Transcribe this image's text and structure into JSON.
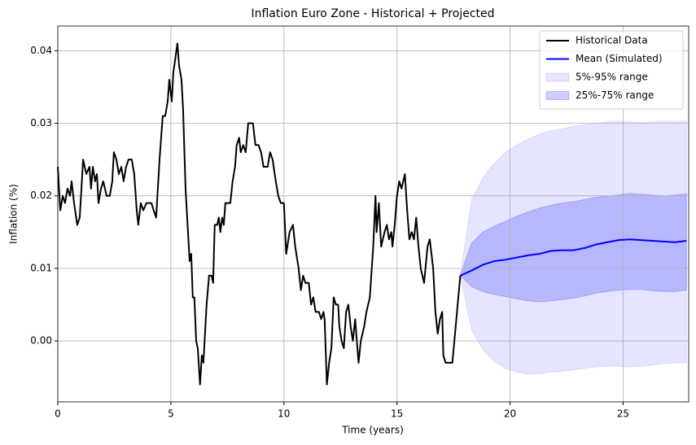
{
  "chart_data": {
    "type": "line",
    "title": "Inflation Euro Zone - Historical + Projected",
    "x_label": "Time (years)",
    "y_label": "Inflation (%)",
    "xlim": [
      0,
      27.9
    ],
    "ylim": [
      -0.0084,
      0.0434
    ],
    "xticks": [
      0,
      5,
      10,
      15,
      20,
      25
    ],
    "yticks": [
      {
        "value": 0,
        "label": "0.00"
      },
      0.01,
      0.02,
      0.03,
      0.04
    ],
    "grid": true,
    "legend_position": "upper-right",
    "series": [
      {
        "name": "Historical Data",
        "color": "#000000",
        "x": [
          0,
          0.11,
          0.22,
          0.32,
          0.43,
          0.54,
          0.61,
          0.72,
          0.86,
          0.97,
          1.12,
          1.26,
          1.4,
          1.47,
          1.55,
          1.65,
          1.73,
          1.8,
          1.91,
          2.01,
          2.16,
          2.3,
          2.41,
          2.48,
          2.59,
          2.7,
          2.81,
          2.91,
          3.02,
          3.13,
          3.27,
          3.38,
          3.49,
          3.56,
          3.67,
          3.78,
          3.92,
          4.14,
          4.24,
          4.35,
          4.5,
          4.64,
          4.75,
          4.86,
          4.93,
          5.04,
          5.11,
          5.29,
          5.36,
          5.47,
          5.54,
          5.65,
          5.83,
          5.9,
          5.97,
          6.04,
          6.12,
          6.19,
          6.29,
          6.37,
          6.44,
          6.58,
          6.69,
          6.8,
          6.87,
          6.94,
          7.05,
          7.12,
          7.19,
          7.27,
          7.34,
          7.41,
          7.63,
          7.73,
          7.84,
          7.91,
          8.02,
          8.09,
          8.2,
          8.31,
          8.42,
          8.63,
          8.74,
          8.88,
          8.99,
          9.1,
          9.28,
          9.39,
          9.5,
          9.64,
          9.75,
          9.86,
          10.0,
          10.1,
          10.25,
          10.4,
          10.5,
          10.65,
          10.75,
          10.85,
          10.95,
          11.1,
          11.2,
          11.3,
          11.4,
          11.55,
          11.65,
          11.75,
          11.8,
          11.9,
          12.0,
          12.1,
          12.2,
          12.3,
          12.4,
          12.45,
          12.55,
          12.65,
          12.75,
          12.85,
          12.95,
          13.05,
          13.15,
          13.2,
          13.3,
          13.4,
          13.55,
          13.65,
          13.8,
          13.95,
          14.05,
          14.1,
          14.2,
          14.3,
          14.45,
          14.55,
          14.65,
          14.75,
          14.8,
          14.9,
          15.0,
          15.1,
          15.2,
          15.35,
          15.45,
          15.55,
          15.65,
          15.75,
          15.85,
          15.95,
          16.05,
          16.2,
          16.35,
          16.45,
          16.6,
          16.7,
          16.8,
          16.9,
          17.0,
          17.05,
          17.15,
          17.45,
          17.8
        ],
        "values": [
          0.024,
          0.018,
          0.02,
          0.019,
          0.021,
          0.02,
          0.022,
          0.019,
          0.016,
          0.017,
          0.025,
          0.023,
          0.024,
          0.021,
          0.024,
          0.022,
          0.023,
          0.019,
          0.021,
          0.022,
          0.02,
          0.02,
          0.022,
          0.026,
          0.025,
          0.023,
          0.024,
          0.022,
          0.024,
          0.025,
          0.025,
          0.023,
          0.018,
          0.016,
          0.019,
          0.018,
          0.019,
          0.019,
          0.018,
          0.017,
          0.025,
          0.031,
          0.031,
          0.033,
          0.036,
          0.033,
          0.037,
          0.041,
          0.038,
          0.036,
          0.032,
          0.021,
          0.011,
          0.012,
          0.006,
          0.006,
          0.0,
          -0.001,
          -0.006,
          -0.002,
          -0.003,
          0.005,
          0.009,
          0.009,
          0.008,
          0.016,
          0.016,
          0.017,
          0.015,
          0.017,
          0.016,
          0.019,
          0.019,
          0.022,
          0.024,
          0.027,
          0.028,
          0.026,
          0.027,
          0.026,
          0.03,
          0.03,
          0.027,
          0.027,
          0.026,
          0.024,
          0.024,
          0.026,
          0.025,
          0.022,
          0.02,
          0.019,
          0.019,
          0.012,
          0.015,
          0.016,
          0.013,
          0.01,
          0.007,
          0.009,
          0.008,
          0.008,
          0.005,
          0.006,
          0.004,
          0.004,
          0.003,
          0.004,
          0.003,
          -0.006,
          -0.003,
          -0.001,
          0.006,
          0.005,
          0.005,
          0.002,
          0.0,
          -0.001,
          0.004,
          0.005,
          0.002,
          0.0,
          0.003,
          0.001,
          -0.003,
          0.0,
          0.002,
          0.004,
          0.006,
          0.013,
          0.02,
          0.015,
          0.019,
          0.013,
          0.015,
          0.016,
          0.014,
          0.015,
          0.013,
          0.016,
          0.02,
          0.022,
          0.021,
          0.023,
          0.018,
          0.014,
          0.015,
          0.014,
          0.017,
          0.013,
          0.01,
          0.008,
          0.013,
          0.014,
          0.01,
          0.004,
          0.001,
          0.003,
          0.004,
          -0.002,
          -0.003,
          -0.003,
          0.009
        ]
      },
      {
        "name": "Mean (Simulated)",
        "color": "#0000ff",
        "x": [
          17.8,
          18.3,
          18.8,
          19.3,
          19.8,
          20.3,
          20.8,
          21.3,
          21.8,
          22.3,
          22.8,
          23.3,
          23.8,
          24.3,
          24.8,
          25.3,
          25.8,
          26.3,
          26.8,
          27.3,
          27.8
        ],
        "values": [
          0.009,
          0.0097,
          0.0105,
          0.011,
          0.0112,
          0.0115,
          0.0118,
          0.012,
          0.0124,
          0.0125,
          0.0125,
          0.0128,
          0.0133,
          0.0136,
          0.0139,
          0.014,
          0.0139,
          0.0138,
          0.0137,
          0.0136,
          0.0138
        ]
      }
    ],
    "bands": [
      {
        "name": "5%-95% range",
        "color": "#0000ff",
        "opacity": 0.1,
        "x": [
          17.8,
          18.3,
          18.8,
          19.3,
          19.8,
          20.3,
          20.8,
          21.3,
          21.8,
          22.3,
          22.8,
          23.3,
          23.8,
          24.3,
          24.8,
          25.3,
          25.8,
          26.3,
          26.8,
          27.3,
          27.8
        ],
        "lower": [
          0.009,
          0.0015,
          -0.0012,
          -0.0028,
          -0.0038,
          -0.0043,
          -0.0046,
          -0.0045,
          -0.0043,
          -0.0042,
          -0.004,
          -0.0038,
          -0.0036,
          -0.0035,
          -0.0035,
          -0.0036,
          -0.0035,
          -0.0033,
          -0.0031,
          -0.003,
          -0.003
        ],
        "upper": [
          0.009,
          0.0195,
          0.0225,
          0.0245,
          0.026,
          0.027,
          0.0278,
          0.0285,
          0.029,
          0.0292,
          0.0296,
          0.0298,
          0.03,
          0.0302,
          0.0303,
          0.0302,
          0.0301,
          0.0302,
          0.0303,
          0.0302,
          0.0303
        ]
      },
      {
        "name": "25%-75% range",
        "color": "#0000ff",
        "opacity": 0.2,
        "x": [
          17.8,
          18.3,
          18.8,
          19.3,
          19.8,
          20.3,
          20.8,
          21.3,
          21.8,
          22.3,
          22.8,
          23.3,
          23.8,
          24.3,
          24.8,
          25.3,
          25.8,
          26.3,
          26.8,
          27.3,
          27.8
        ],
        "lower": [
          0.009,
          0.0075,
          0.0068,
          0.0064,
          0.0061,
          0.0058,
          0.0055,
          0.0054,
          0.0055,
          0.0057,
          0.0059,
          0.0062,
          0.0066,
          0.0068,
          0.007,
          0.0071,
          0.0071,
          0.0069,
          0.0068,
          0.0068,
          0.007
        ],
        "upper": [
          0.009,
          0.0135,
          0.015,
          0.0158,
          0.0165,
          0.0172,
          0.0178,
          0.0183,
          0.0187,
          0.019,
          0.0192,
          0.0195,
          0.0198,
          0.02,
          0.0201,
          0.0203,
          0.0202,
          0.0201,
          0.02,
          0.0201,
          0.0203
        ]
      }
    ]
  }
}
